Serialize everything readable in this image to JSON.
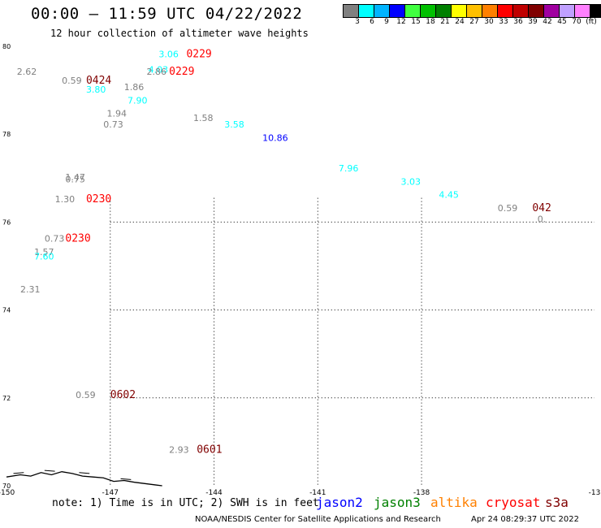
{
  "title": "00:00 – 11:59 UTC 04/22/2022",
  "subtitle": "12 hour collection of altimeter wave heights",
  "legend": {
    "unit": "(ft)",
    "colors": [
      "#808080",
      "#00ffff",
      "#00b4ff",
      "#0000ff",
      "#40ff40",
      "#00c000",
      "#008000",
      "#ffff00",
      "#ffc000",
      "#ff8000",
      "#ff0000",
      "#c00000",
      "#800000",
      "#a000a0",
      "#c0a0ff",
      "#ff80ff",
      "#000000"
    ],
    "labels": [
      "3",
      "6",
      "9",
      "12",
      "15",
      "18",
      "21",
      "24",
      "27",
      "30",
      "33",
      "36",
      "39",
      "42",
      "45",
      "70"
    ]
  },
  "axes": {
    "lat_labels": [
      "80",
      "78",
      "76",
      "74",
      "72",
      "70"
    ],
    "lon_labels": [
      "-150",
      "-147",
      "-144",
      "-141",
      "-138",
      "-13"
    ]
  },
  "observations": [
    {
      "text": "3.06",
      "lon": -145.6,
      "lat": 79.75,
      "color": "#00ffff"
    },
    {
      "text": "2.62",
      "lon": -149.7,
      "lat": 79.35,
      "color": "#808080"
    },
    {
      "text": "0.59",
      "lon": -148.4,
      "lat": 79.15,
      "color": "#808080"
    },
    {
      "text": "4.03",
      "lon": -145.9,
      "lat": 79.4,
      "color": "#00ffff"
    },
    {
      "text": "2.86",
      "lon": -145.95,
      "lat": 79.35,
      "color": "#808080"
    },
    {
      "text": "3.80",
      "lon": -147.7,
      "lat": 78.95,
      "color": "#00ffff"
    },
    {
      "text": "1.86",
      "lon": -146.6,
      "lat": 79.0,
      "color": "#808080"
    },
    {
      "text": "7.90",
      "lon": -146.5,
      "lat": 78.7,
      "color": "#00ffff"
    },
    {
      "text": "1.94",
      "lon": -147.1,
      "lat": 78.4,
      "color": "#808080"
    },
    {
      "text": "0.73",
      "lon": -147.2,
      "lat": 78.15,
      "color": "#808080"
    },
    {
      "text": "1.58",
      "lon": -144.6,
      "lat": 78.3,
      "color": "#808080"
    },
    {
      "text": "3.58",
      "lon": -143.7,
      "lat": 78.15,
      "color": "#00ffff"
    },
    {
      "text": "10.86",
      "lon": -142.6,
      "lat": 77.85,
      "color": "#0000ff"
    },
    {
      "text": "7.96",
      "lon": -140.4,
      "lat": 77.15,
      "color": "#00ffff"
    },
    {
      "text": "1.47",
      "lon": -148.3,
      "lat": 76.95,
      "color": "#808080"
    },
    {
      "text": "0.75",
      "lon": -148.3,
      "lat": 76.9,
      "color": "#808080"
    },
    {
      "text": "3.03",
      "lon": -138.6,
      "lat": 76.85,
      "color": "#00ffff"
    },
    {
      "text": "4.45",
      "lon": -137.5,
      "lat": 76.55,
      "color": "#00ffff"
    },
    {
      "text": "1.30",
      "lon": -148.6,
      "lat": 76.45,
      "color": "#808080"
    },
    {
      "text": "0.59",
      "lon": -135.8,
      "lat": 76.25,
      "color": "#808080"
    },
    {
      "text": "0.",
      "lon": -134.65,
      "lat": 76.0,
      "color": "#808080"
    },
    {
      "text": "0.73",
      "lon": -148.9,
      "lat": 75.55,
      "color": "#808080"
    },
    {
      "text": "1.57",
      "lon": -149.2,
      "lat": 75.25,
      "color": "#808080"
    },
    {
      "text": "7.60",
      "lon": -149.2,
      "lat": 75.15,
      "color": "#00ffff"
    },
    {
      "text": "2.31",
      "lon": -149.6,
      "lat": 74.4,
      "color": "#808080"
    },
    {
      "text": "0.59",
      "lon": -148.0,
      "lat": 72.0,
      "color": "#808080"
    },
    {
      "text": "2.93",
      "lon": -145.3,
      "lat": 70.75,
      "color": "#808080"
    }
  ],
  "times": [
    {
      "text": "0229",
      "lon": -144.8,
      "lat": 79.75,
      "color": "#ff0000"
    },
    {
      "text": "0229",
      "lon": -145.3,
      "lat": 79.35,
      "color": "#ff0000"
    },
    {
      "text": "0424",
      "lon": -147.7,
      "lat": 79.15,
      "color": "#800000"
    },
    {
      "text": "0230",
      "lon": -147.7,
      "lat": 76.45,
      "color": "#ff0000"
    },
    {
      "text": "0230",
      "lon": -148.3,
      "lat": 75.55,
      "color": "#ff0000"
    },
    {
      "text": "042",
      "lon": -134.8,
      "lat": 76.25,
      "color": "#800000"
    },
    {
      "text": "0602",
      "lon": -147.0,
      "lat": 72.0,
      "color": "#800000"
    },
    {
      "text": "0601",
      "lon": -144.5,
      "lat": 70.75,
      "color": "#800000"
    }
  ],
  "note": "note: 1) Time is in UTC; 2) SWH is in feet",
  "satellites": [
    {
      "name": "jason2",
      "color": "#0000ff"
    },
    {
      "name": "jason3",
      "color": "#008000"
    },
    {
      "name": "altika",
      "color": "#ff8000"
    },
    {
      "name": "cryosat",
      "color": "#ff0000"
    },
    {
      "name": "s3a",
      "color": "#800000"
    }
  ],
  "credit": "NOAA/NESDIS Center for Satellite Applications and Research",
  "generated": "Apr 24 08:29:37 UTC 2022"
}
